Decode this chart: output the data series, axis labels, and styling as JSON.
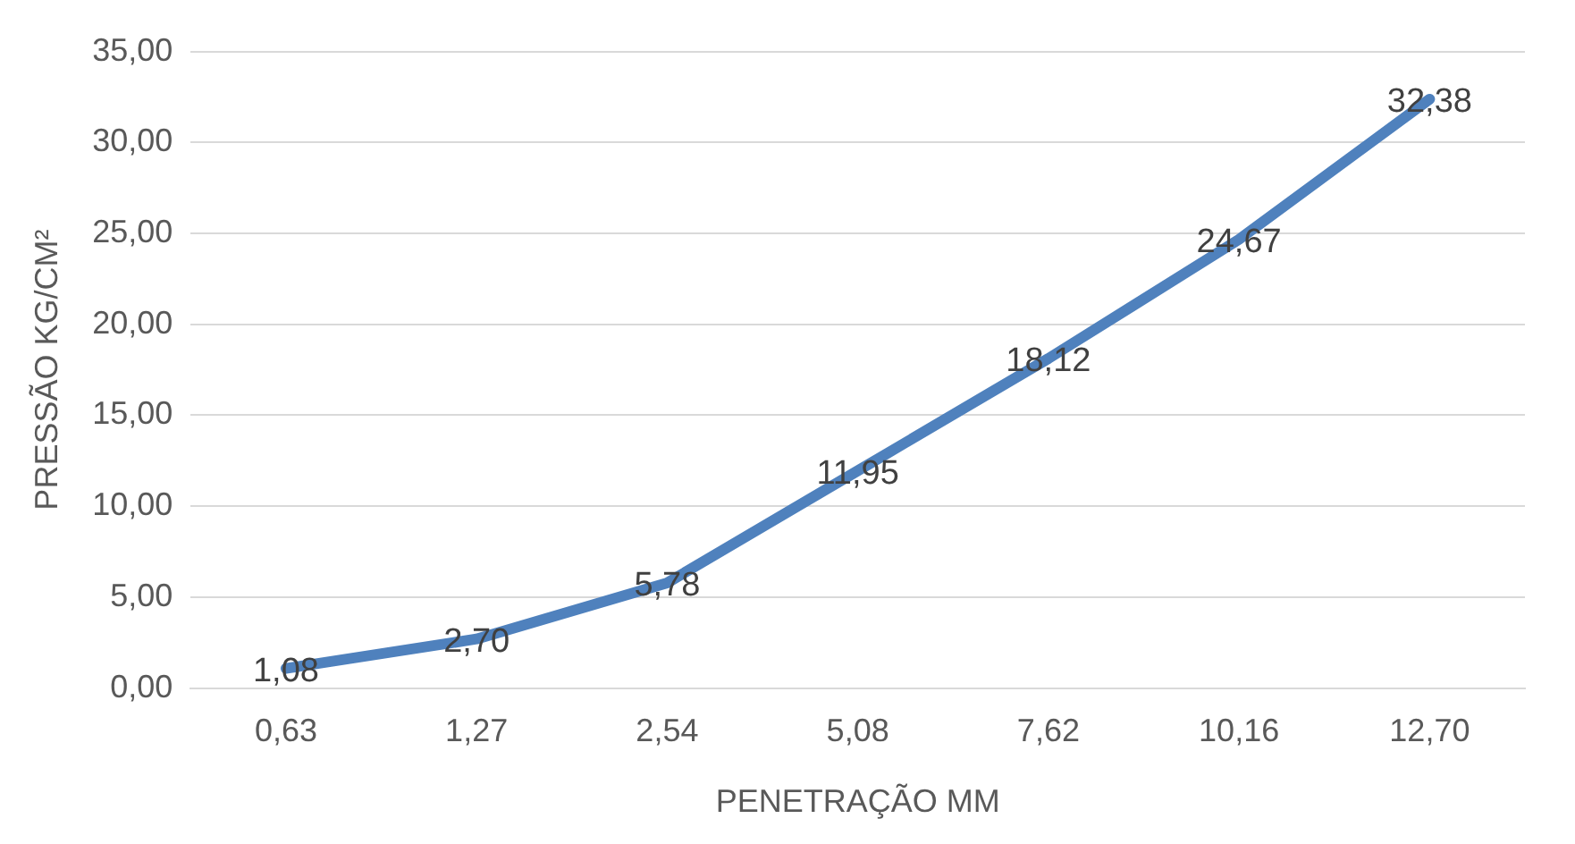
{
  "chart_data": {
    "type": "line",
    "xlabel": "PENETRAÇÃO MM",
    "ylabel": "PRESSÃO KG/CM²",
    "categories": [
      "0,63",
      "1,27",
      "2,54",
      "5,08",
      "7,62",
      "10,16",
      "12,70"
    ],
    "series": [
      {
        "color": "#4f81bd",
        "values": [
          1.08,
          2.7,
          5.78,
          11.95,
          18.12,
          24.67,
          32.38
        ],
        "value_labels": [
          "1,08",
          "2,70",
          "5,78",
          "11,95",
          "18,12",
          "24,67",
          "32,38"
        ]
      }
    ],
    "ylim": [
      0,
      35
    ],
    "yticks": [
      {
        "value": 0,
        "label": "0,00"
      },
      {
        "value": 5,
        "label": "5,00"
      },
      {
        "value": 10,
        "label": "10,00"
      },
      {
        "value": 15,
        "label": "15,00"
      },
      {
        "value": 20,
        "label": "20,00"
      },
      {
        "value": 25,
        "label": "25,00"
      },
      {
        "value": 30,
        "label": "30,00"
      },
      {
        "value": 35,
        "label": "35,00"
      }
    ],
    "grid": "y",
    "legend": false,
    "marker": "none",
    "line_style": "solid"
  }
}
